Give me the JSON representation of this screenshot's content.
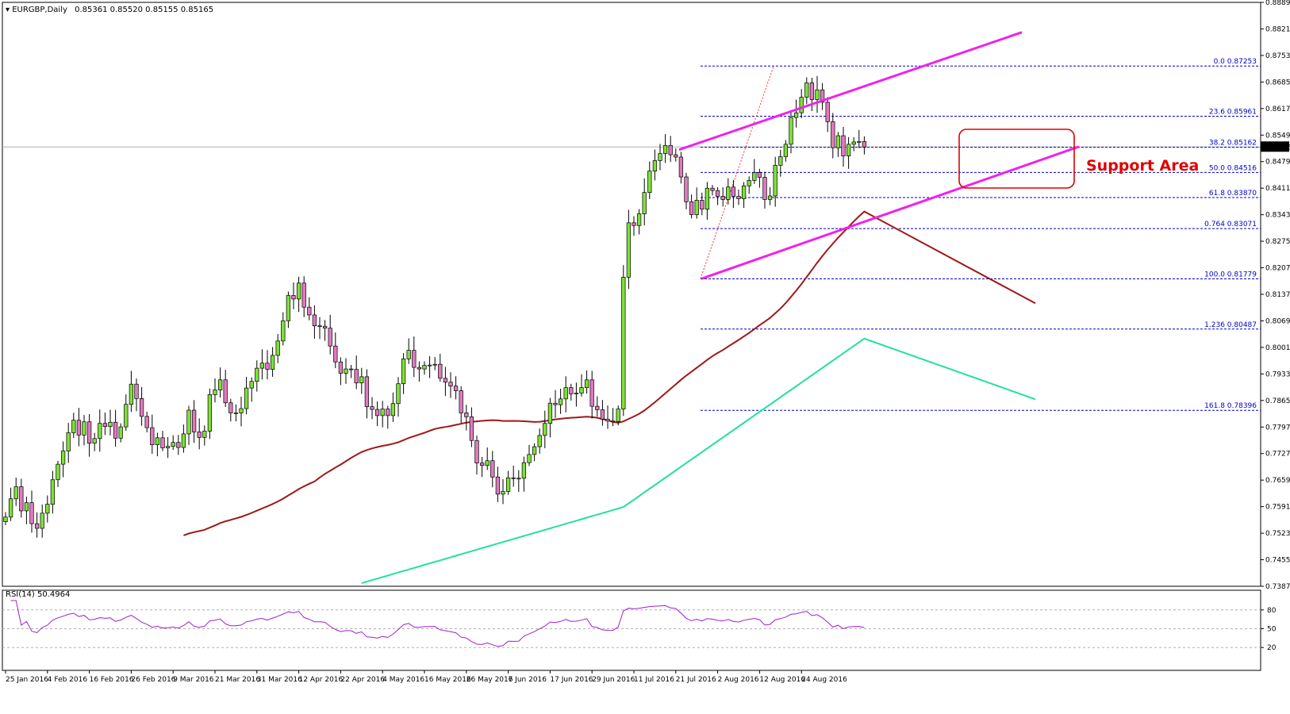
{
  "header": {
    "symbol": "EURGBP,Daily",
    "ohlc": "0.85361 0.85520 0.85155 0.85165"
  },
  "rsi_header": "RSI(14) 50.4964",
  "annotation": "Support Area",
  "colors": {
    "bull": "#7fe03a",
    "bear": "#e07bbf",
    "ma_fast": "#a01818",
    "ma_slow": "#22e0a0",
    "channel": "#ee22ee",
    "fib": "#0000cc",
    "rsi": "#a020d0",
    "box": "#e00000"
  },
  "chart_data": [
    {
      "type": "candlestick",
      "title": "EURGBP,Daily",
      "last_price": "0.85165",
      "ylim": [
        0.7387,
        0.8889
      ],
      "y_ticks": [
        "0.88890",
        "0.88210",
        "0.87530",
        "0.86850",
        "0.86170",
        "0.85490",
        "0.84790",
        "0.84110",
        "0.83430",
        "0.82750",
        "0.82070",
        "0.81370",
        "0.80690",
        "0.80010",
        "0.79330",
        "0.78650",
        "0.77970",
        "0.77270",
        "0.76590",
        "0.75910",
        "0.75230",
        "0.74550",
        "0.73870"
      ],
      "x_ticks": [
        "25 Jan 2016",
        "4 Feb 2016",
        "16 Feb 2016",
        "26 Feb 2016",
        "9 Mar 2016",
        "21 Mar 2016",
        "31 Mar 2016",
        "12 Apr 2016",
        "22 Apr 2016",
        "4 May 2016",
        "16 May 2016",
        "26 May 2016",
        "7 Jun 2016",
        "17 Jun 2016",
        "29 Jun 2016",
        "11 Jul 2016",
        "21 Jul 2016",
        "2 Aug 2016",
        "12 Aug 2016",
        "24 Aug 2016"
      ],
      "x_tick_bar_index": [
        0,
        8,
        16,
        24,
        32,
        40,
        48,
        56,
        64,
        72,
        80,
        88,
        96,
        104,
        112,
        120,
        128,
        136,
        144,
        152
      ],
      "closes": [
        0.7565,
        0.7612,
        0.7643,
        0.7581,
        0.7602,
        0.7548,
        0.7536,
        0.7575,
        0.7598,
        0.7661,
        0.7701,
        0.7735,
        0.7782,
        0.7814,
        0.7776,
        0.781,
        0.7755,
        0.7767,
        0.7806,
        0.7798,
        0.7809,
        0.7768,
        0.7797,
        0.7855,
        0.7907,
        0.787,
        0.7824,
        0.7795,
        0.7751,
        0.7769,
        0.7743,
        0.7747,
        0.7757,
        0.7744,
        0.7779,
        0.784,
        0.7784,
        0.777,
        0.7786,
        0.788,
        0.7892,
        0.7918,
        0.7859,
        0.7833,
        0.7833,
        0.7844,
        0.7897,
        0.7914,
        0.7948,
        0.7961,
        0.7945,
        0.7981,
        0.8018,
        0.807,
        0.8135,
        0.8126,
        0.8167,
        0.8105,
        0.8085,
        0.8057,
        0.8056,
        0.8051,
        0.8005,
        0.7964,
        0.7935,
        0.7946,
        0.7945,
        0.791,
        0.7926,
        0.7849,
        0.7842,
        0.7826,
        0.7843,
        0.7826,
        0.7857,
        0.7908,
        0.7972,
        0.7994,
        0.795,
        0.7946,
        0.7955,
        0.7956,
        0.7958,
        0.7922,
        0.7912,
        0.7902,
        0.789,
        0.7833,
        0.7823,
        0.7762,
        0.7704,
        0.7698,
        0.771,
        0.7668,
        0.7624,
        0.7631,
        0.7666,
        0.7664,
        0.7665,
        0.7705,
        0.7726,
        0.7746,
        0.7775,
        0.7806,
        0.7858,
        0.7854,
        0.7869,
        0.7898,
        0.7882,
        0.7884,
        0.7898,
        0.7918,
        0.785,
        0.7841,
        0.7817,
        0.7812,
        0.7811,
        0.7843,
        0.8182,
        0.8322,
        0.8315,
        0.8345,
        0.84,
        0.8455,
        0.8482,
        0.85,
        0.8521,
        0.8497,
        0.8491,
        0.844,
        0.8376,
        0.8343,
        0.838,
        0.8357,
        0.8411,
        0.8405,
        0.839,
        0.8382,
        0.8414,
        0.839,
        0.8384,
        0.8417,
        0.8431,
        0.8451,
        0.8439,
        0.8382,
        0.8391,
        0.847,
        0.8492,
        0.8524,
        0.8593,
        0.8605,
        0.8645,
        0.8682,
        0.8639,
        0.8664,
        0.8632,
        0.8582,
        0.8515,
        0.8546,
        0.8494,
        0.8524,
        0.853,
        0.8531,
        0.8517
      ]
    },
    {
      "type": "line",
      "title": "RSI(14) 50.4964",
      "ylim": [
        0,
        100
      ],
      "y_ticks": [
        "80",
        "50",
        "20"
      ],
      "levels": [
        80,
        50,
        20
      ],
      "values": [
        50.4964
      ]
    }
  ],
  "fib_levels": [
    {
      "label": "0.0 0.87253",
      "price": 0.87253
    },
    {
      "label": "23.6 0.85961",
      "price": 0.85961
    },
    {
      "label": "38.2 0.85162",
      "price": 0.85162
    },
    {
      "label": "50.0 0.84516",
      "price": 0.84516
    },
    {
      "label": "61.8 0.83870",
      "price": 0.8387
    },
    {
      "label": "0.764 0.83071",
      "price": 0.83071
    },
    {
      "label": "100.0 0.81779",
      "price": 0.81779
    },
    {
      "label": "1.236 0.80487",
      "price": 0.80487
    },
    {
      "label": "161.8 0.78396",
      "price": 0.78396
    }
  ]
}
